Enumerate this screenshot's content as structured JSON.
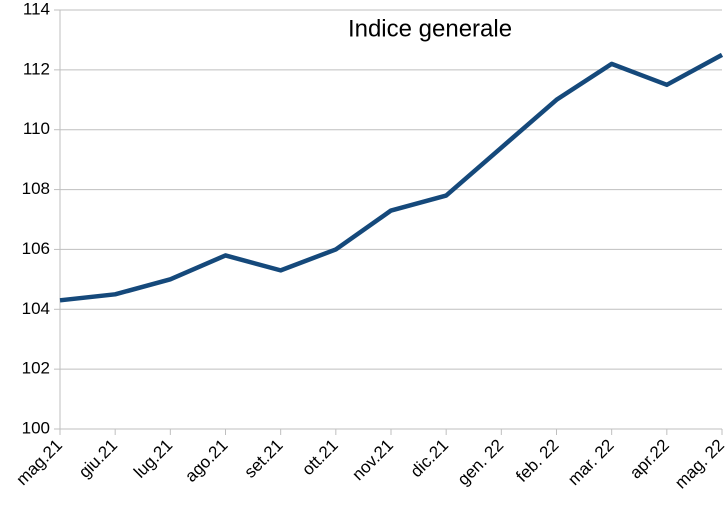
{
  "chart_data": {
    "type": "line",
    "title": "Indice generale",
    "categories": [
      "mag.21",
      "giu.21",
      "lug.21",
      "ago.21",
      "set.21",
      "ott.21",
      "nov.21",
      "dic.21",
      "gen. 22",
      "feb. 22",
      "mar. 22",
      "apr.22",
      "mag. 22"
    ],
    "values": [
      104.3,
      104.5,
      105.0,
      105.8,
      105.3,
      106.0,
      107.3,
      107.8,
      109.4,
      111.0,
      112.2,
      111.5,
      112.5
    ],
    "color": "#15497b",
    "ylim": [
      100,
      114
    ],
    "yticks": [
      100,
      102,
      104,
      106,
      108,
      110,
      112,
      114
    ],
    "grid": true
  }
}
